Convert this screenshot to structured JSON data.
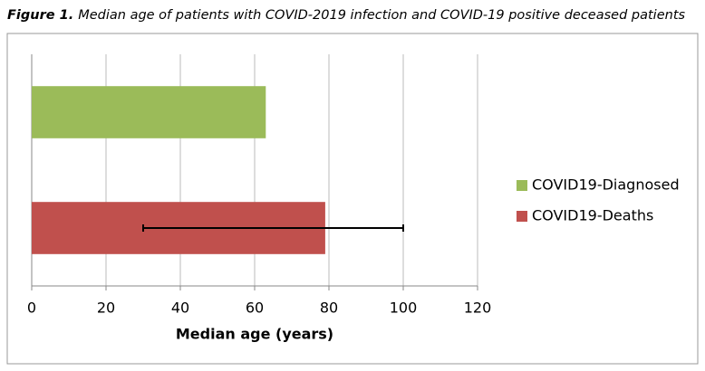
{
  "chart_data": {
    "type": "hbar",
    "title_prefix": "Figure 1.",
    "title": "Median age of patients with COVID-2019 infection and COVID-19 positive deceased patients",
    "xlabel": "Median age (years)",
    "categories": [
      null
    ],
    "series": [
      {
        "name": "COVID19-Diagnosed",
        "color": "#9bbb59",
        "values": [
          63
        ]
      },
      {
        "name": "COVID19-Deaths",
        "color": "#c0504d",
        "values": [
          79
        ],
        "error_minus": [
          49
        ],
        "error_plus": [
          21
        ]
      }
    ],
    "xlim": [
      0,
      120
    ],
    "xticks": [
      0,
      20,
      40,
      60,
      80,
      100,
      120
    ],
    "grid": true,
    "legend": "right"
  }
}
